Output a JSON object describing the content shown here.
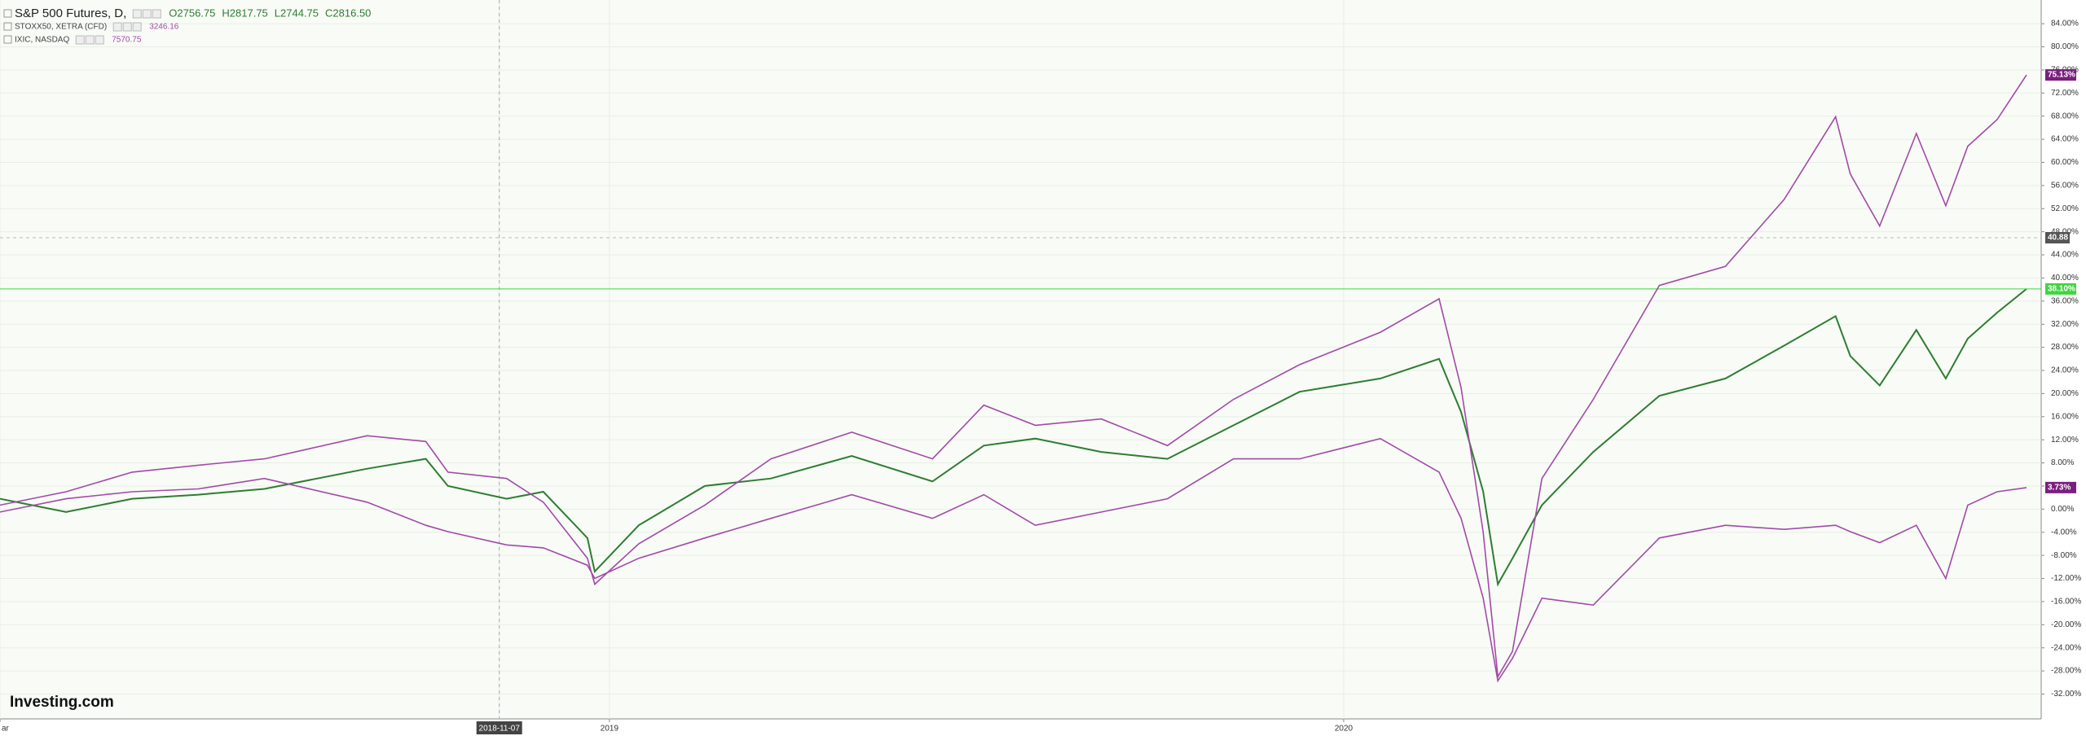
{
  "chart_data": {
    "type": "line",
    "header": {
      "logo": "Investing.com"
    },
    "series": [
      {
        "name": "S&P 500 Futures, D,",
        "info": [
          "O2756.75",
          "H2817.75",
          "L2744.75",
          "C2816.50"
        ],
        "color": "#2e7d32",
        "badge_color": "#3fd63f",
        "last_value_label": "38.10%",
        "values": [
          1.8,
          -0.5,
          1.8,
          2.5,
          3.5,
          7,
          8.7,
          4,
          1.8,
          3,
          -5,
          -10.8,
          -2.8,
          4,
          5.3,
          9.2,
          4.8,
          11,
          12.2,
          9.9,
          8.7,
          14.5,
          20.3,
          22.6,
          26,
          16.8,
          3,
          -13,
          -8.5,
          0.7,
          9.9,
          19.6,
          22.6,
          28.3,
          33.4,
          26.5,
          21.4,
          31,
          22.6,
          29.5,
          34,
          38.1
        ]
      },
      {
        "name": "STOXX50, XETRA (CFD)",
        "info": [
          "3246.16"
        ],
        "color": "#a24aa8",
        "badge_color": "#7b1f7e",
        "last_value_label": "3.73%",
        "values": [
          -0.5,
          1.8,
          3,
          3.5,
          5.3,
          1.2,
          -2.8,
          -3.9,
          -6.2,
          -6.7,
          -9.7,
          -12,
          -8.5,
          -5,
          -1.6,
          2.5,
          -1.6,
          2.5,
          -2.8,
          -0.5,
          1.8,
          8.7,
          8.7,
          12.2,
          6.4,
          -1.6,
          -15.4,
          -29.7,
          -25.8,
          -15.4,
          -16.6,
          -5,
          -2.8,
          -3.5,
          -2.8,
          -3.9,
          -5.8,
          -2.8,
          -12,
          0.7,
          3,
          3.73
        ]
      },
      {
        "name": "IXIC, NASDAQ",
        "info": [
          "7570.75"
        ],
        "color": "#a24aa8",
        "badge_color": "#7b1f7e",
        "last_value_label": "75.13%",
        "values": [
          0.7,
          3,
          6.4,
          7.6,
          8.7,
          12.7,
          11.7,
          6.4,
          5.3,
          1.2,
          -8.5,
          -13,
          -6,
          0.7,
          8.7,
          13.3,
          8.7,
          18,
          14.5,
          15.6,
          11,
          19,
          25,
          30.6,
          36.4,
          21,
          -4,
          -29,
          -24.6,
          5.3,
          19,
          38.7,
          42,
          53.6,
          67.9,
          58,
          49,
          65,
          52.5,
          62.8,
          67.4,
          75.13
        ]
      }
    ],
    "x": [
      2018.17,
      2018.26,
      2018.35,
      2018.44,
      2018.53,
      2018.67,
      2018.75,
      2018.78,
      2018.86,
      2018.91,
      2018.97,
      2018.98,
      2019.04,
      2019.13,
      2019.22,
      2019.33,
      2019.44,
      2019.51,
      2019.58,
      2019.67,
      2019.76,
      2019.85,
      2019.94,
      2020.05,
      2020.13,
      2020.16,
      2020.19,
      2020.21,
      2020.23,
      2020.27,
      2020.34,
      2020.43,
      2020.52,
      2020.6,
      2020.67,
      2020.69,
      2020.73,
      2020.78,
      2020.82,
      2020.85,
      2020.89,
      2020.93
    ],
    "xlim": [
      2018.17,
      2020.95
    ],
    "xticks": [
      {
        "value": 2018.17,
        "label": "ar"
      },
      {
        "value": 2018.85,
        "label": "2018-11-07"
      },
      2019,
      2020
    ],
    "ylim": [
      -36.3,
      88.1
    ],
    "yticks": [
      {
        "value": -32,
        "label": "-32.00%"
      },
      {
        "value": -28,
        "label": "-28.00%"
      },
      {
        "value": -24,
        "label": "-24.00%"
      },
      {
        "value": -20,
        "label": "-20.00%"
      },
      {
        "value": -16,
        "label": "-16.00%"
      },
      {
        "value": -12,
        "label": "-12.00%"
      },
      {
        "value": -8,
        "label": "-8.00%"
      },
      {
        "value": -4,
        "label": "-4.00%"
      },
      {
        "value": 0,
        "label": "0.00%"
      },
      {
        "value": 4,
        "label": "4.00%"
      },
      {
        "value": 8,
        "label": "8.00%"
      },
      {
        "value": 12,
        "label": "12.00%"
      },
      {
        "value": 16,
        "label": "16.00%"
      },
      {
        "value": 20,
        "label": "20.00%"
      },
      {
        "value": 24,
        "label": "24.00%"
      },
      {
        "value": 28,
        "label": "28.00%"
      },
      {
        "value": 32,
        "label": "32.00%"
      },
      {
        "value": 36,
        "label": "36.00%"
      },
      {
        "value": 40,
        "label": "40.00%"
      },
      {
        "value": 44,
        "label": "44.00%"
      },
      {
        "value": 48,
        "label": "48.00%"
      },
      {
        "value": 52,
        "label": "52.00%"
      },
      {
        "value": 56,
        "label": "56.00%"
      },
      {
        "value": 60,
        "label": "60.00%"
      },
      {
        "value": 64,
        "label": "64.00%"
      },
      {
        "value": 68,
        "label": "68.00%"
      },
      {
        "value": 72,
        "label": "72.00%"
      },
      {
        "value": 76,
        "label": "76.00%"
      },
      {
        "value": 80,
        "label": "80.00%"
      },
      {
        "value": 84,
        "label": "84.00%"
      }
    ],
    "grid": true,
    "annotations": [
      {
        "text": "40.88"
      }
    ]
  }
}
